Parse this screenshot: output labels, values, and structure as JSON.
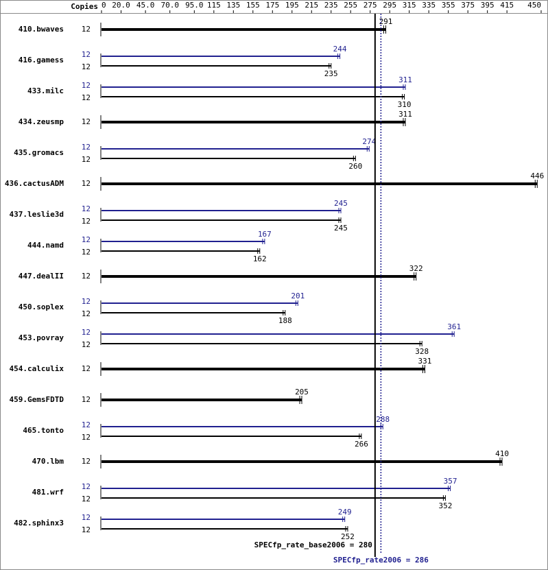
{
  "chart_data": {
    "type": "bar",
    "copies_label": "Copies",
    "categories": [
      "410.bwaves",
      "416.gamess",
      "433.milc",
      "434.zeusmp",
      "435.gromacs",
      "436.cactusADM",
      "437.leslie3d",
      "444.namd",
      "447.dealII",
      "450.soplex",
      "453.povray",
      "454.calculix",
      "459.GemsFDTD",
      "465.tonto",
      "470.lbm",
      "481.wrf",
      "482.sphinx3"
    ],
    "series": [
      {
        "color": "#000000",
        "copies": [
          12,
          12,
          12,
          12,
          12,
          12,
          12,
          12,
          12,
          12,
          12,
          12,
          12,
          12,
          12,
          12,
          12
        ],
        "values": [
          291,
          235,
          310,
          311,
          260,
          446,
          245,
          162,
          322,
          188,
          328,
          331,
          205,
          266,
          410,
          352,
          252
        ]
      },
      {
        "color": "#1f1f8f",
        "copies": [
          null,
          12,
          12,
          null,
          12,
          null,
          12,
          12,
          null,
          12,
          12,
          null,
          null,
          12,
          null,
          12,
          12
        ],
        "values": [
          null,
          244,
          311,
          null,
          274,
          null,
          245,
          167,
          null,
          201,
          361,
          null,
          null,
          288,
          null,
          357,
          249
        ]
      }
    ],
    "xlim": [
      0,
      450
    ],
    "xticks": [
      0,
      {
        "value": 20,
        "label": "20.0"
      },
      {
        "value": 45,
        "label": "45.0"
      },
      {
        "value": 70,
        "label": "70.0"
      },
      {
        "value": 95,
        "label": "95.0"
      },
      115,
      135,
      155,
      175,
      195,
      215,
      235,
      255,
      275,
      295,
      315,
      335,
      355,
      375,
      395,
      415,
      450
    ],
    "base_ref": {
      "value": 280,
      "label": "SPECfp_rate_base2006 = 280",
      "color": "#000000"
    },
    "peak_ref": {
      "value": 286,
      "label": "SPECfp_rate2006 = 286",
      "color": "#1f1f8f"
    }
  }
}
